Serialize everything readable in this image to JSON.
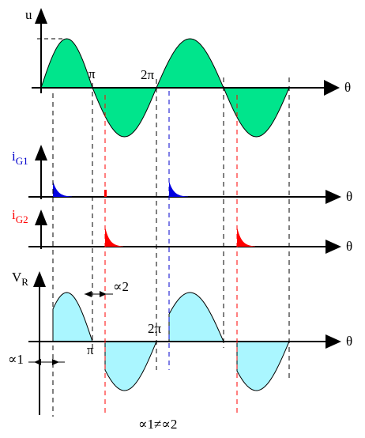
{
  "labels": {
    "u_axis": "u",
    "theta": "θ",
    "pi": "π",
    "two_pi": "2π",
    "ig1_main": "i",
    "ig1_sub": "G1",
    "ig2_main": "i",
    "ig2_sub": "G2",
    "vr_main": "V",
    "vr_sub": "R",
    "alpha1": "∝1",
    "alpha2": "∝2",
    "inequality": "∝1≠∝2"
  },
  "colors": {
    "sine_fill": "#00e58c",
    "vr_fill": "#aaf6ff",
    "ig1_pulse": "#0000e0",
    "ig2_pulse": "#ff0000",
    "ig1_label": "#0000cc",
    "ig2_label": "#ff0000",
    "dash_black": "#000000",
    "dash_blue": "#0000cc",
    "dash_red": "#ff0000"
  }
}
